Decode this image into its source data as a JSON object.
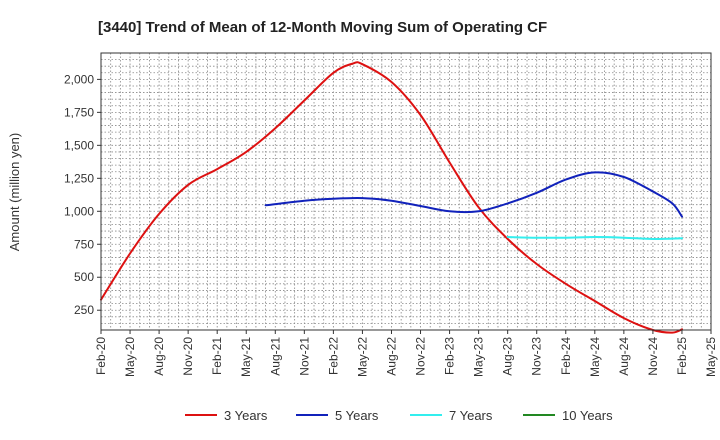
{
  "chart_data": {
    "type": "line",
    "title": "[3440]  Trend of Mean of 12-Month Moving Sum of Operating CF",
    "xlabel": "",
    "ylabel": "Amount (million yen)",
    "ylim": [
      100,
      2200
    ],
    "yticks": [
      250,
      500,
      750,
      1000,
      1250,
      1500,
      1750,
      2000
    ],
    "ytick_labels": [
      "250",
      "500",
      "750",
      "1,000",
      "1,250",
      "1,500",
      "1,750",
      "2,000"
    ],
    "xlim": [
      "Feb-20",
      "May-25"
    ],
    "xtick_labels": [
      "Feb-20",
      "May-20",
      "Aug-20",
      "Nov-20",
      "Feb-21",
      "May-21",
      "Aug-21",
      "Nov-21",
      "Feb-22",
      "May-22",
      "Aug-22",
      "Nov-22",
      "Feb-23",
      "May-23",
      "Aug-23",
      "Nov-23",
      "Feb-24",
      "May-24",
      "Aug-24",
      "Nov-24",
      "Feb-25",
      "May-25"
    ],
    "grid": true,
    "legend_position": "bottom",
    "series": [
      {
        "name": "3 Years",
        "color": "#dd1111",
        "points": [
          [
            "Feb-20",
            330
          ],
          [
            "May-20",
            680
          ],
          [
            "Aug-20",
            980
          ],
          [
            "Nov-20",
            1200
          ],
          [
            "Feb-21",
            1320
          ],
          [
            "May-21",
            1450
          ],
          [
            "Aug-21",
            1630
          ],
          [
            "Nov-21",
            1840
          ],
          [
            "Feb-22",
            2050
          ],
          [
            "Apr-22",
            2120
          ],
          [
            "May-22",
            2115
          ],
          [
            "Aug-22",
            1980
          ],
          [
            "Nov-22",
            1730
          ],
          [
            "Feb-23",
            1370
          ],
          [
            "May-23",
            1030
          ],
          [
            "Aug-23",
            790
          ],
          [
            "Nov-23",
            600
          ],
          [
            "Feb-24",
            450
          ],
          [
            "May-24",
            320
          ],
          [
            "Aug-24",
            190
          ],
          [
            "Nov-24",
            100
          ],
          [
            "Jan-25",
            80
          ],
          [
            "Feb-25",
            105
          ]
        ]
      },
      {
        "name": "5 Years",
        "color": "#1122bb",
        "points": [
          [
            "Jul-21",
            1045
          ],
          [
            "Nov-21",
            1080
          ],
          [
            "Feb-22",
            1095
          ],
          [
            "May-22",
            1100
          ],
          [
            "Aug-22",
            1080
          ],
          [
            "Nov-22",
            1040
          ],
          [
            "Feb-23",
            1000
          ],
          [
            "May-23",
            1000
          ],
          [
            "Aug-23",
            1060
          ],
          [
            "Nov-23",
            1140
          ],
          [
            "Feb-24",
            1240
          ],
          [
            "May-24",
            1295
          ],
          [
            "Aug-24",
            1260
          ],
          [
            "Nov-24",
            1150
          ],
          [
            "Jan-25",
            1060
          ],
          [
            "Feb-25",
            960
          ]
        ]
      },
      {
        "name": "7 Years",
        "color": "#33eeee",
        "points": [
          [
            "Aug-23",
            805
          ],
          [
            "Nov-23",
            800
          ],
          [
            "Feb-24",
            800
          ],
          [
            "May-24",
            805
          ],
          [
            "Aug-24",
            800
          ],
          [
            "Nov-24",
            790
          ],
          [
            "Feb-25",
            795
          ]
        ]
      },
      {
        "name": "10 Years",
        "color": "#228822",
        "points": []
      }
    ]
  }
}
